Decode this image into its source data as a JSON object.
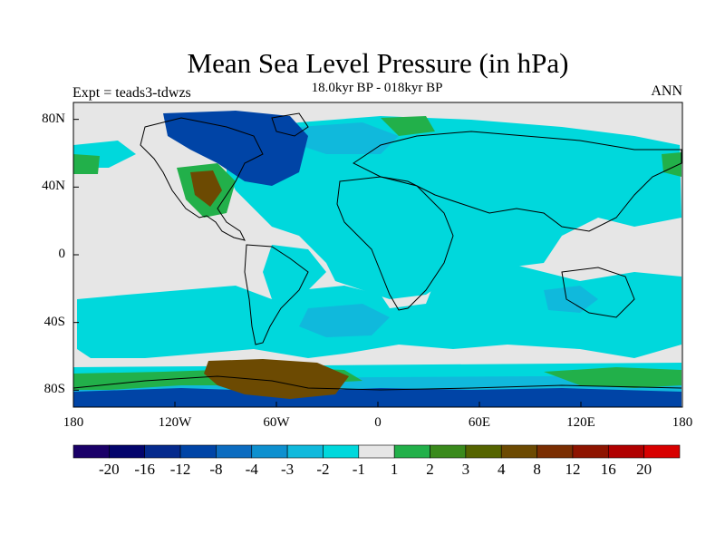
{
  "title": "Mean Sea Level Pressure (in hPa)",
  "subtitle_left": "Expt = teads3-tdwzs",
  "subtitle_center": "18.0kyr BP - 018kyr BP",
  "subtitle_right": "ANN",
  "axes": {
    "lat_labels": [
      "80N",
      "40N",
      "0",
      "40S",
      "80S"
    ],
    "lon_labels": [
      "180",
      "120W",
      "60W",
      "0",
      "60E",
      "120E",
      "180"
    ]
  },
  "colorbar": {
    "colors": [
      "#1a0068",
      "#03046c",
      "#052a8d",
      "#0044a6",
      "#0c6cc0",
      "#0e90cf",
      "#10b9dc",
      "#00d8dc",
      "#e6e6e6",
      "#22b04a",
      "#3a8a1c",
      "#556400",
      "#6c4a02",
      "#7a2e02",
      "#8e1400",
      "#b00000",
      "#d80000"
    ],
    "labels": [
      "-20",
      "-16",
      "-12",
      "-8",
      "-4",
      "-3",
      "-2",
      "-1",
      "1",
      "2",
      "3",
      "4",
      "8",
      "12",
      "16",
      "20"
    ]
  },
  "colors": {
    "neutral": "#e6e6e6",
    "light_negative": "#00d8dc",
    "medium_negative": "#10b9dc",
    "strong_negative": "#0044a6",
    "light_positive": "#22b04a",
    "strong_positive": "#6c4a02"
  }
}
